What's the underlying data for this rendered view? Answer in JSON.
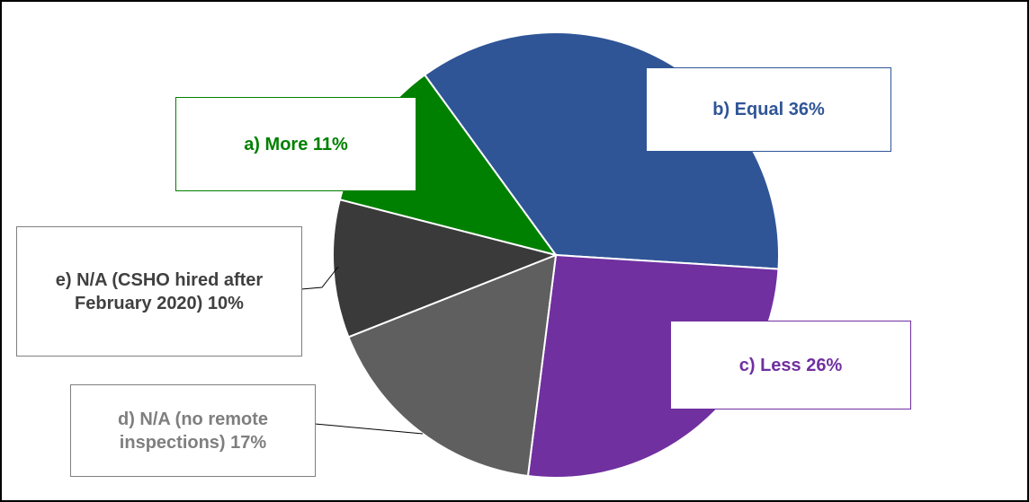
{
  "chart_data": {
    "type": "pie",
    "categories": [
      "a) More",
      "b) Equal",
      "c) Less",
      "d) N/A (no remote inspections)",
      "e) N/A (CSHO hired after February 2020)"
    ],
    "values": [
      11,
      36,
      26,
      17,
      10
    ],
    "value_labels": [
      "11%",
      "36%",
      "26%",
      "17%",
      "10%"
    ],
    "colors": [
      "#008000",
      "#2f5597",
      "#7030a0",
      "#5f5f5f",
      "#3a3a3a"
    ],
    "label_colors": [
      "#008000",
      "#2f5597",
      "#7030a0",
      "#7f7f7f",
      "#404040"
    ]
  }
}
